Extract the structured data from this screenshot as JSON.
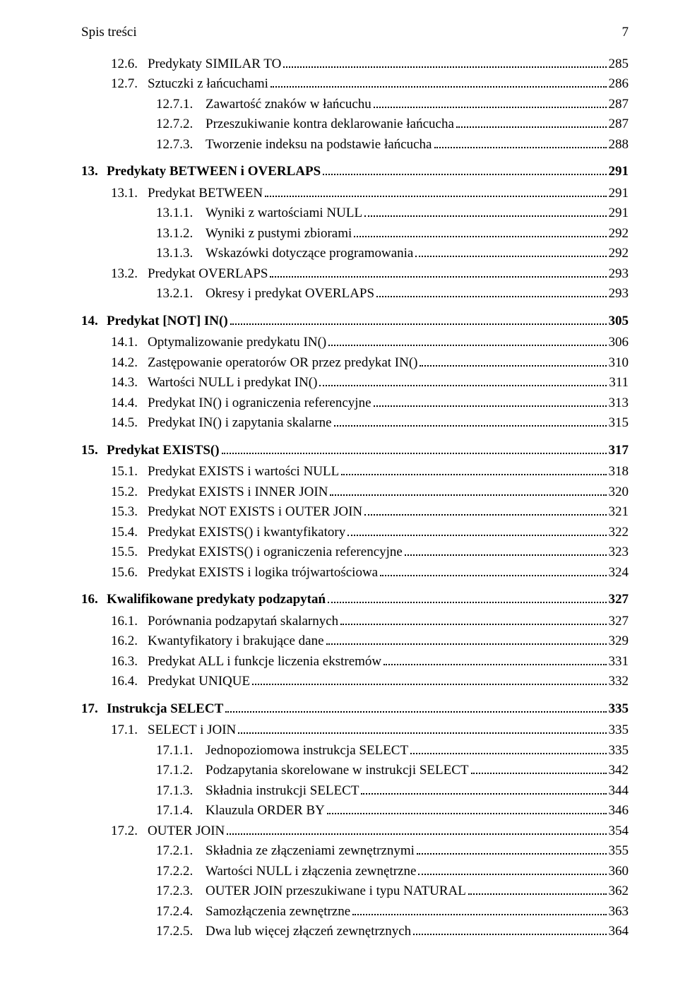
{
  "header": {
    "title": "Spis treści",
    "pageno": "7"
  },
  "rows": [
    {
      "level": "sec",
      "num": "12.6.",
      "text": "Predykaty SIMILAR TO",
      "page": "285"
    },
    {
      "level": "sec",
      "num": "12.7.",
      "text": "Sztuczki z łańcuchami",
      "page": "286"
    },
    {
      "level": "sub",
      "num": "12.7.1.",
      "text": "Zawartość znaków w łańcuchu",
      "page": "287"
    },
    {
      "level": "sub",
      "num": "12.7.2.",
      "text": "Przeszukiwanie kontra deklarowanie łańcucha",
      "page": "287"
    },
    {
      "level": "sub",
      "num": "12.7.3.",
      "text": "Tworzenie indeksu na podstawie łańcucha",
      "page": "288"
    },
    {
      "level": "chapter",
      "num": "13.",
      "text": "Predykaty BETWEEN i OVERLAPS",
      "page": "291"
    },
    {
      "level": "sec",
      "num": "13.1.",
      "text": "Predykat BETWEEN",
      "page": "291"
    },
    {
      "level": "sub",
      "num": "13.1.1.",
      "text": "Wyniki z wartościami NULL",
      "page": "291"
    },
    {
      "level": "sub",
      "num": "13.1.2.",
      "text": "Wyniki z pustymi zbiorami",
      "page": "292"
    },
    {
      "level": "sub",
      "num": "13.1.3.",
      "text": "Wskazówki dotyczące programowania",
      "page": "292"
    },
    {
      "level": "sec",
      "num": "13.2.",
      "text": "Predykat OVERLAPS",
      "page": "293"
    },
    {
      "level": "sub",
      "num": "13.2.1.",
      "text": "Okresy i predykat OVERLAPS",
      "page": "293"
    },
    {
      "level": "chapter",
      "num": "14.",
      "text": "Predykat [NOT] IN()",
      "page": "305"
    },
    {
      "level": "sec",
      "num": "14.1.",
      "text": "Optymalizowanie predykatu IN()",
      "page": "306"
    },
    {
      "level": "sec",
      "num": "14.2.",
      "text": "Zastępowanie operatorów OR przez predykat IN()",
      "page": "310"
    },
    {
      "level": "sec",
      "num": "14.3.",
      "text": "Wartości NULL i predykat IN()",
      "page": "311"
    },
    {
      "level": "sec",
      "num": "14.4.",
      "text": "Predykat IN() i ograniczenia referencyjne",
      "page": "313"
    },
    {
      "level": "sec",
      "num": "14.5.",
      "text": "Predykat IN() i zapytania skalarne",
      "page": "315"
    },
    {
      "level": "chapter",
      "num": "15.",
      "text": "Predykat EXISTS()",
      "page": "317"
    },
    {
      "level": "sec",
      "num": "15.1.",
      "text": "Predykat EXISTS i wartości NULL",
      "page": "318"
    },
    {
      "level": "sec",
      "num": "15.2.",
      "text": "Predykat EXISTS i INNER JOIN",
      "page": "320"
    },
    {
      "level": "sec",
      "num": "15.3.",
      "text": "Predykat NOT EXISTS i OUTER JOIN",
      "page": "321"
    },
    {
      "level": "sec",
      "num": "15.4.",
      "text": "Predykat EXISTS() i kwantyfikatory",
      "page": "322"
    },
    {
      "level": "sec",
      "num": "15.5.",
      "text": "Predykat EXISTS() i ograniczenia referencyjne",
      "page": "323"
    },
    {
      "level": "sec",
      "num": "15.6.",
      "text": "Predykat EXISTS i logika trójwartościowa",
      "page": "324"
    },
    {
      "level": "chapter",
      "num": "16.",
      "text": "Kwalifikowane predykaty podzapytań",
      "page": "327"
    },
    {
      "level": "sec",
      "num": "16.1.",
      "text": "Porównania podzapytań skalarnych",
      "page": "327"
    },
    {
      "level": "sec",
      "num": "16.2.",
      "text": "Kwantyfikatory i brakujące dane",
      "page": "329"
    },
    {
      "level": "sec",
      "num": "16.3.",
      "text": "Predykat ALL i funkcje liczenia ekstremów",
      "page": "331"
    },
    {
      "level": "sec",
      "num": "16.4.",
      "text": "Predykat UNIQUE",
      "page": "332"
    },
    {
      "level": "chapter",
      "num": "17.",
      "text": "Instrukcja SELECT",
      "page": "335"
    },
    {
      "level": "sec",
      "num": "17.1.",
      "text": "SELECT i JOIN",
      "page": "335"
    },
    {
      "level": "sub",
      "num": "17.1.1.",
      "text": "Jednopoziomowa instrukcja SELECT",
      "page": "335"
    },
    {
      "level": "sub",
      "num": "17.1.2.",
      "text": "Podzapytania skorelowane w instrukcji SELECT",
      "page": "342"
    },
    {
      "level": "sub",
      "num": "17.1.3.",
      "text": "Składnia instrukcji SELECT",
      "page": "344"
    },
    {
      "level": "sub",
      "num": "17.1.4.",
      "text": "Klauzula ORDER BY",
      "page": "346"
    },
    {
      "level": "sec",
      "num": "17.2.",
      "text": "OUTER JOIN",
      "page": "354"
    },
    {
      "level": "sub",
      "num": "17.2.1.",
      "text": "Składnia ze złączeniami zewnętrznymi",
      "page": "355"
    },
    {
      "level": "sub",
      "num": "17.2.2.",
      "text": "Wartości NULL i złączenia zewnętrzne",
      "page": "360"
    },
    {
      "level": "sub",
      "num": "17.2.3.",
      "text": "OUTER JOIN przeszukiwane i typu NATURAL",
      "page": "362"
    },
    {
      "level": "sub",
      "num": "17.2.4.",
      "text": "Samozłączenia zewnętrzne",
      "page": "363"
    },
    {
      "level": "sub",
      "num": "17.2.5.",
      "text": "Dwa lub więcej złączeń zewnętrznych",
      "page": "364"
    }
  ]
}
